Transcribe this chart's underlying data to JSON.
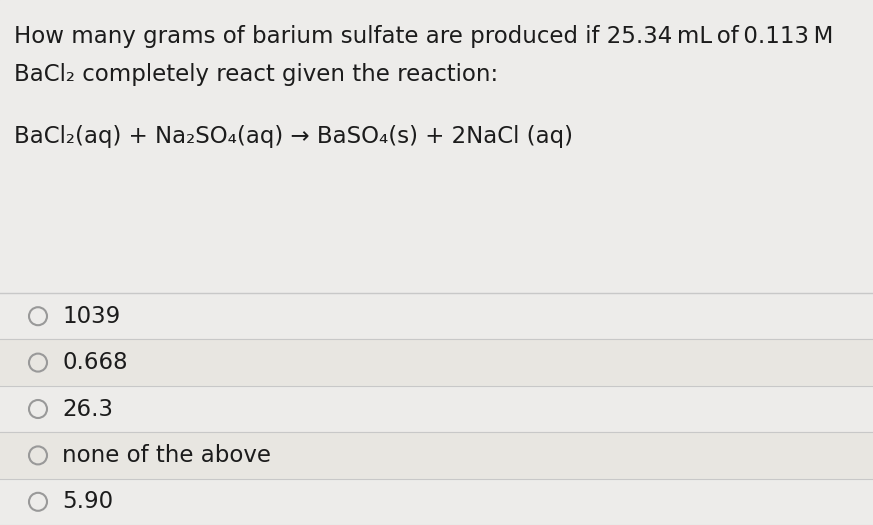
{
  "background_color": "#e8e6e1",
  "question_bg_color": "#edecea",
  "choice_bg_color": "#e8e6e1",
  "question_line1": "How many grams of barium sulfate are produced if 25.34 mL of 0.113 M",
  "question_line2": "BaCl₂ completely react given the reaction:",
  "equation": "BaCl₂(aq) + Na₂SO₄(aq) → BaSO₄(s) + 2NaCl (aq)",
  "choices": [
    "1039",
    "0.668",
    "26.3",
    "none of the above",
    "5.90"
  ],
  "text_color": "#1c1c1c",
  "circle_color": "#999999",
  "separator_color": "#c8c8c8",
  "question_fontsize": 16.5,
  "equation_fontsize": 16.5,
  "choice_fontsize": 16.5
}
